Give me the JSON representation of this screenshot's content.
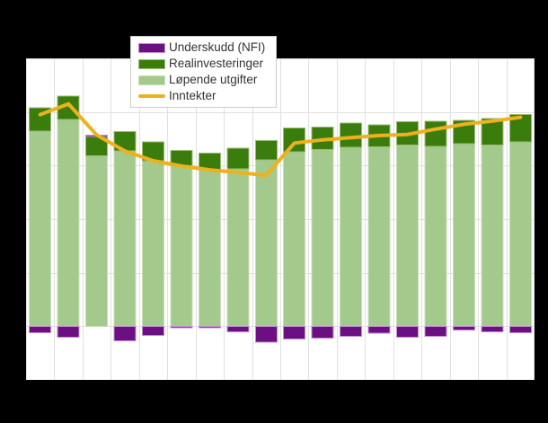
{
  "window": {
    "background": "#000000",
    "plot_background": "#ffffff",
    "gridline_color": "#e0e0e0"
  },
  "legend": {
    "items": [
      {
        "label": "Underskudd (NFI)",
        "type": "bar",
        "color": "#6b0f82",
        "border": "#c08ed0"
      },
      {
        "label": "Realinvesteringer",
        "type": "bar",
        "color": "#3a7d0c",
        "border": "#9cbd72"
      },
      {
        "label": "Løpende utgifter",
        "type": "bar",
        "color": "#a4c98c",
        "border": "#cbdfb6"
      },
      {
        "label": "Inntekter",
        "type": "line",
        "color": "#edb11e"
      }
    ]
  },
  "chart_data": {
    "type": "bar",
    "subtype": "stacked-bars-with-line-overlay",
    "title": "",
    "xlabel": "",
    "ylabel": "",
    "n_points": 18,
    "x_tick_labels_visible": false,
    "y_tick_labels_visible": false,
    "grid": true,
    "legend_position": "top-left-inside",
    "y_axis": {
      "min": -100,
      "max": 500,
      "gridline_step": 100
    },
    "series": [
      {
        "name": "Underskudd (NFI)",
        "role": "deficit",
        "color": "#6b0f82",
        "border": "#c08ed0",
        "values": [
          -12,
          -20,
          3,
          -27,
          -17,
          -3,
          -3,
          -10,
          -30,
          -24,
          -22,
          -19,
          -13,
          -20,
          -19,
          -7,
          -10,
          -12
        ]
      },
      {
        "name": "Realinvesteringer",
        "role": "stack_upper",
        "color": "#3a7d0c",
        "border": "#9cbd72",
        "values": [
          44,
          44,
          36,
          36,
          35,
          28,
          31,
          38,
          36,
          44,
          42,
          45,
          41,
          44,
          47,
          43,
          50,
          51
        ]
      },
      {
        "name": "Løpende utgifter",
        "role": "stack_lower",
        "color": "#a4c98c",
        "border": "#cbdfb6",
        "values": [
          364,
          386,
          318,
          327,
          309,
          300,
          292,
          294,
          311,
          326,
          330,
          334,
          335,
          338,
          336,
          341,
          338,
          344
        ]
      },
      {
        "name": "Inntekter",
        "role": "line",
        "color": "#edb11e",
        "line_width": 4,
        "values": [
          395,
          415,
          357,
          327,
          309,
          299,
          292,
          287,
          282,
          342,
          348,
          352,
          356,
          358,
          368,
          377,
          383,
          390
        ]
      }
    ]
  }
}
